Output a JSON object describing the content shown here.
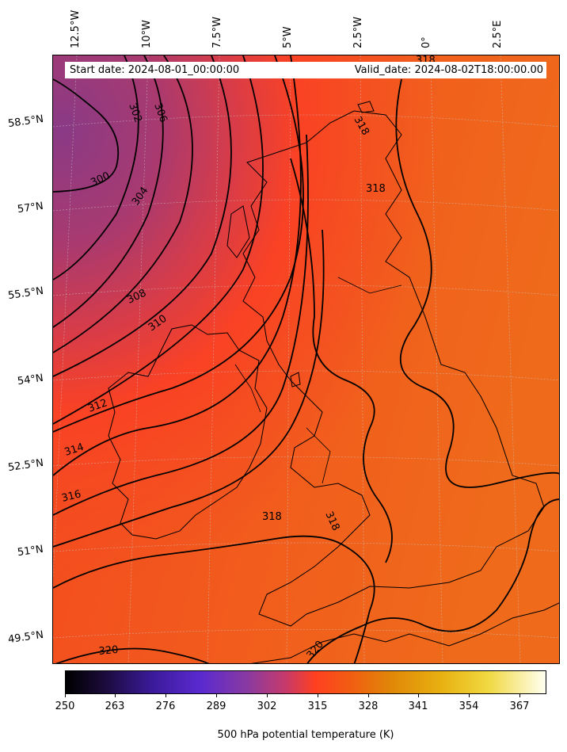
{
  "header": {
    "start_date": "Start date: 2024-08-01_00:00:00",
    "valid_date": "Valid_date: 2024-08-02T18:00:00.00"
  },
  "longitude_labels": [
    "12.5°W",
    "10°W",
    "7.5°W",
    "5°W",
    "2.5°W",
    "0°",
    "2.5°E"
  ],
  "latitude_labels": [
    "58.5°N",
    "57°N",
    "55.5°N",
    "54°N",
    "52.5°N",
    "51°N",
    "49.5°N"
  ],
  "contour_labels": [
    "302",
    "306",
    "300",
    "304",
    "308",
    "310",
    "312",
    "314",
    "316",
    "318",
    "318",
    "318",
    "318",
    "318",
    "320",
    "320"
  ],
  "colorbar": {
    "colormap": "CMRmap",
    "ticks": [
      "250",
      "263",
      "276",
      "289",
      "302",
      "315",
      "328",
      "341",
      "354",
      "367"
    ],
    "label": "500 hPa potential temperature (K)",
    "range": [
      250,
      373
    ]
  },
  "colors": {
    "low_field": "#8a3a86",
    "mid_field": "#ff4020",
    "high_field": "#f26a1c",
    "contour": "#000000"
  }
}
